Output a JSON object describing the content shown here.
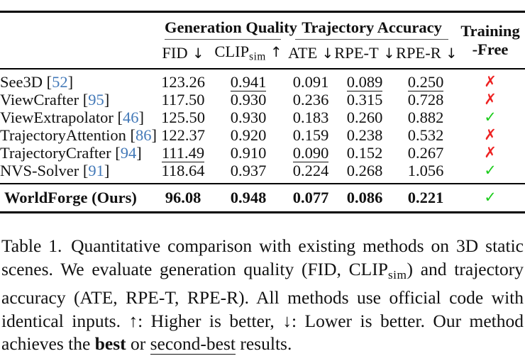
{
  "table": {
    "groups": [
      {
        "label": "Generation Quality",
        "span": 2
      },
      {
        "label": "Trajectory Accuracy",
        "span": 3
      }
    ],
    "training_free": {
      "line1": "Training",
      "line2": "-Free"
    },
    "columns": [
      {
        "name": "FID",
        "sub": "",
        "arrow": "↓"
      },
      {
        "name": "CLIP",
        "sub": "sim",
        "arrow": "↑"
      },
      {
        "name": "ATE",
        "sub": "",
        "arrow": "↓"
      },
      {
        "name": "RPE-T",
        "sub": "",
        "arrow": "↓"
      },
      {
        "name": "RPE-R",
        "sub": "",
        "arrow": "↓"
      }
    ],
    "rows": [
      {
        "method": "See3D",
        "cite": "52",
        "values": [
          "123.26",
          "0.941",
          "0.091",
          "0.089",
          "0.250"
        ],
        "underline": [
          false,
          true,
          false,
          true,
          true
        ],
        "training_free": false
      },
      {
        "method": "ViewCrafter",
        "cite": "95",
        "values": [
          "117.50",
          "0.930",
          "0.236",
          "0.315",
          "0.728"
        ],
        "underline": [
          false,
          false,
          false,
          false,
          false
        ],
        "training_free": false
      },
      {
        "method": "ViewExtrapolator",
        "cite": "46",
        "values": [
          "125.50",
          "0.930",
          "0.183",
          "0.260",
          "0.882"
        ],
        "underline": [
          false,
          false,
          false,
          false,
          false
        ],
        "training_free": true
      },
      {
        "method": "TrajectoryAttention",
        "cite": "86",
        "values": [
          "122.37",
          "0.920",
          "0.159",
          "0.238",
          "0.532"
        ],
        "underline": [
          false,
          false,
          false,
          false,
          false
        ],
        "training_free": false
      },
      {
        "method": "TrajectoryCrafter",
        "cite": "94",
        "values": [
          "111.49",
          "0.910",
          "0.090",
          "0.152",
          "0.267"
        ],
        "underline": [
          true,
          false,
          true,
          false,
          false
        ],
        "training_free": false
      },
      {
        "method": "NVS-Solver",
        "cite": "91",
        "values": [
          "118.64",
          "0.937",
          "0.224",
          "0.268",
          "1.056"
        ],
        "underline": [
          false,
          false,
          false,
          false,
          false
        ],
        "training_free": true
      }
    ],
    "ours_row": {
      "method": "WorldForge (Ours)",
      "values": [
        "96.08",
        "0.948",
        "0.077",
        "0.086",
        "0.221"
      ],
      "training_free": true
    },
    "check_glyph": "✓",
    "cross_glyph": "✗"
  },
  "caption": {
    "segments": [
      {
        "text": "Table 1. Quantitative comparison with existing methods on 3D static scenes. We evaluate generation quality (FID, CLIP",
        "style": "normal"
      },
      {
        "text": "sim",
        "style": "sub"
      },
      {
        "text": ") and trajectory accuracy (ATE, RPE-T, RPE-R). All methods use official code with identical inputs. ↑: Higher is better, ↓: Lower is better. Our method achieves the ",
        "style": "normal"
      },
      {
        "text": "best",
        "style": "bold"
      },
      {
        "text": " or ",
        "style": "normal"
      },
      {
        "text": "second-best",
        "style": "underline"
      },
      {
        "text": " results.",
        "style": "normal"
      }
    ]
  },
  "colors": {
    "cite_blue": "#4379b8",
    "check_green": "#1ccc1c",
    "cross_red": "#ee2222"
  }
}
